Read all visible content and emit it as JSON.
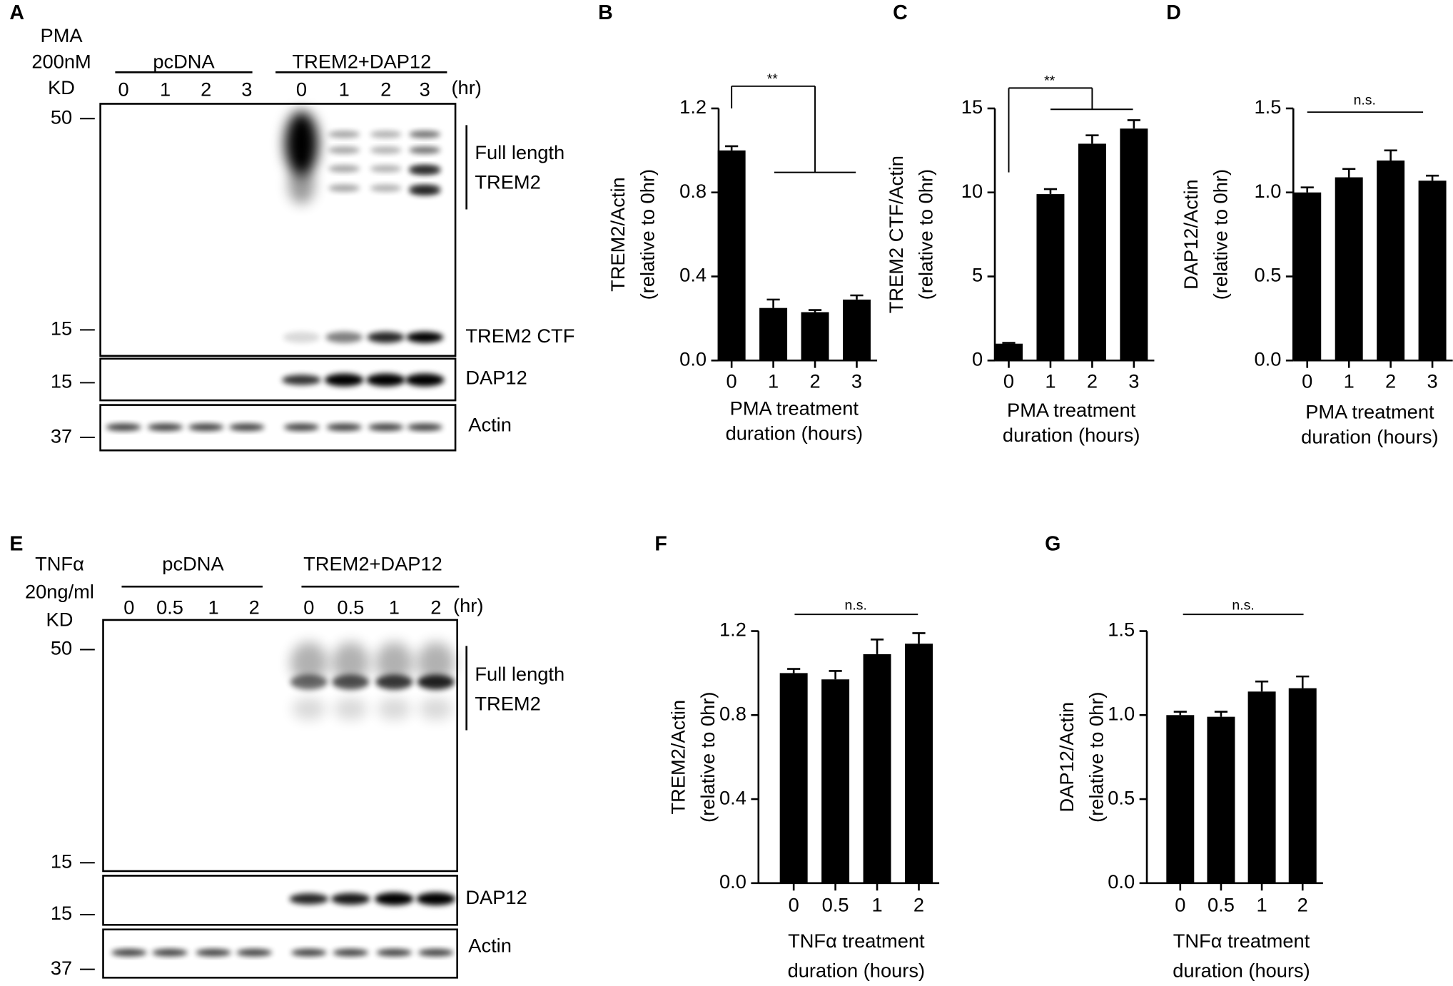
{
  "chart_data": [
    {
      "type": "bar",
      "panel": "B",
      "categories": [
        "0",
        "1",
        "2",
        "3"
      ],
      "values": [
        1.0,
        0.25,
        0.23,
        0.29
      ],
      "errors": [
        0.02,
        0.04,
        0.01,
        0.02
      ],
      "ylim": [
        0,
        1.2
      ],
      "yticks": [
        {
          "value": 0,
          "label": "0.0"
        },
        0.4,
        0.8,
        1.2
      ],
      "ylabel": [
        "TREM2/Actin",
        "(relative to 0hr)"
      ],
      "xlabel": [
        "PMA treatment",
        "duration (hours)"
      ],
      "annotation": "**",
      "color": "#000000"
    },
    {
      "type": "bar",
      "panel": "C",
      "categories": [
        "0",
        "1",
        "2",
        "3"
      ],
      "values": [
        1.0,
        9.9,
        12.9,
        13.8
      ],
      "errors": [
        0.05,
        0.3,
        0.5,
        0.5
      ],
      "ylim": [
        0,
        15
      ],
      "yticks": [
        0,
        5,
        10,
        15
      ],
      "ylabel": [
        "TREM2 CTF/Actin",
        "(relative to 0hr)"
      ],
      "xlabel": [
        "PMA treatment",
        "duration (hours)"
      ],
      "annotation": "**",
      "color": "#000000"
    },
    {
      "type": "bar",
      "panel": "D",
      "categories": [
        "0",
        "1",
        "2",
        "3"
      ],
      "values": [
        1.0,
        1.09,
        1.19,
        1.07
      ],
      "errors": [
        0.03,
        0.05,
        0.06,
        0.03
      ],
      "ylim": [
        0,
        1.5
      ],
      "yticks": [
        {
          "value": 0,
          "label": "0.0"
        },
        0.5,
        {
          "value": 1,
          "label": "1.0"
        },
        1.5
      ],
      "ylabel": [
        "DAP12/Actin",
        "(relative to 0hr)"
      ],
      "xlabel": [
        "PMA treatment",
        "duration (hours)"
      ],
      "annotation": "n.s.",
      "color": "#000000"
    },
    {
      "type": "bar",
      "panel": "F",
      "categories": [
        "0",
        "0.5",
        "1",
        "2"
      ],
      "values": [
        1.0,
        0.97,
        1.09,
        1.14
      ],
      "errors": [
        0.02,
        0.04,
        0.07,
        0.05
      ],
      "ylim": [
        0,
        1.2
      ],
      "yticks": [
        {
          "value": 0,
          "label": "0.0"
        },
        0.4,
        0.8,
        1.2
      ],
      "ylabel": [
        "TREM2/Actin",
        "(relative to 0hr)"
      ],
      "xlabel": [
        "TNFα treatment",
        "duration (hours)"
      ],
      "annotation": "n.s.",
      "color": "#000000"
    },
    {
      "type": "bar",
      "panel": "G",
      "categories": [
        "0",
        "0.5",
        "1",
        "2"
      ],
      "values": [
        1.0,
        0.99,
        1.14,
        1.16
      ],
      "errors": [
        0.02,
        0.03,
        0.06,
        0.07
      ],
      "ylim": [
        0,
        1.5
      ],
      "yticks": [
        {
          "value": 0,
          "label": "0.0"
        },
        0.5,
        {
          "value": 1,
          "label": "1.0"
        },
        1.5
      ],
      "ylabel": [
        "DAP12/Actin",
        "(relative to 0hr)"
      ],
      "xlabel": [
        "TNFα treatment",
        "duration (hours)"
      ],
      "annotation": "n.s.",
      "color": "#000000"
    }
  ],
  "blots": [
    {
      "panel": "A",
      "treatment": [
        "PMA",
        "200nM"
      ],
      "kd": "KD",
      "groups": [
        "pcDNA",
        "TREM2+DAP12"
      ],
      "lanes": [
        "0",
        "1",
        "2",
        "3",
        "0",
        "1",
        "2",
        "3"
      ],
      "unit": "(hr)",
      "markers": [
        "50",
        "15",
        "15",
        "37"
      ],
      "band_labels": [
        "Full length",
        "TREM2",
        "TREM2 CTF",
        "DAP12",
        "Actin"
      ]
    },
    {
      "panel": "E",
      "treatment": [
        "TNFα",
        "20ng/ml"
      ],
      "kd": "KD",
      "groups": [
        "pcDNA",
        "TREM2+DAP12"
      ],
      "lanes": [
        "0",
        "0.5",
        "1",
        "2",
        "0",
        "0.5",
        "1",
        "2"
      ],
      "unit": "(hr)",
      "markers": [
        "50",
        "15",
        "15",
        "37"
      ],
      "band_labels": [
        "Full length",
        "TREM2",
        "DAP12",
        "Actin"
      ]
    }
  ]
}
